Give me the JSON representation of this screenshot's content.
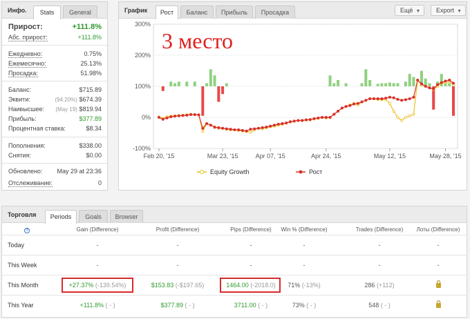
{
  "stats": {
    "title": "Инфо.",
    "tabs": [
      {
        "label": "Stats"
      },
      {
        "label": "General"
      }
    ],
    "gain": {
      "label": "Прирост:",
      "value": "+111.8%"
    },
    "abs_gain": {
      "label": "Абс. прирост:",
      "value": "+111.8%"
    },
    "daily": {
      "label": "Ежедневно:",
      "value": "0.75%"
    },
    "monthly": {
      "label": "Ежемесячно:",
      "value": "25.13%"
    },
    "drawdown": {
      "label": "Просадка:",
      "value": "51.98%"
    },
    "balance": {
      "label": "Баланс:",
      "value": "$715.89"
    },
    "equity": {
      "label": "Эквити:",
      "sub": "(94.20%)",
      "value": "$674.39"
    },
    "highest": {
      "label": "Наивысшее:",
      "sub": "(May 19)",
      "value": "$819.94"
    },
    "profit": {
      "label": "Прибыль:",
      "value": "$377.89"
    },
    "interest": {
      "label": "Процентная ставка:",
      "value": "$8.34"
    },
    "deposits": {
      "label": "Пополнения:",
      "value": "$338.00"
    },
    "withdrawals": {
      "label": "Снятия:",
      "value": "$0.00"
    },
    "updated": {
      "label": "Обновлено:",
      "value": "May 29 at 23:36"
    },
    "tracking": {
      "label": "Отслеживание:",
      "value": "0"
    }
  },
  "chart_panel": {
    "title": "График",
    "tabs": [
      {
        "label": "Рост"
      },
      {
        "label": "Баланс"
      },
      {
        "label": "Прибыль"
      },
      {
        "label": "Просадка"
      }
    ],
    "more_label": "Ещё",
    "export_label": "Export",
    "annotation": "3 место"
  },
  "chart_data": {
    "type": "line",
    "y_ticks": [
      "300%",
      "200%",
      "100%",
      "0%",
      "-100%"
    ],
    "ylim": [
      -100,
      300
    ],
    "x_ticks": [
      "Feb 20, '15",
      "Mar 23, '15",
      "Apr 07, '15",
      "Apr 24, '15",
      "May 12, '15",
      "May 28, '15"
    ],
    "legend": {
      "placement": "bottom",
      "equity_label": "Equity Growth",
      "growth_label": "Рост"
    },
    "colors": {
      "equity": "#e8c020",
      "growth": "#d9302c",
      "bar_pos": "#8fd17f",
      "bar_neg": "#e84848"
    },
    "series": [
      {
        "name": "Equity Growth",
        "values": [
          1,
          -3,
          2,
          4,
          5,
          6,
          7,
          8,
          10,
          9,
          8,
          -45,
          -20,
          -25,
          -30,
          -35,
          -35,
          -38,
          -40,
          -40,
          -42,
          -44,
          -45,
          -48,
          -40,
          -35,
          -37,
          -33,
          -30,
          -28,
          -25,
          -22,
          -18,
          -15,
          -12,
          -10,
          -10,
          -8,
          -8,
          -5,
          -3,
          0,
          -2,
          0,
          10,
          20,
          30,
          35,
          40,
          45,
          40,
          50,
          55,
          60,
          60,
          58,
          57,
          57,
          45,
          20,
          0,
          -10,
          0,
          5,
          10,
          120,
          105,
          100,
          95,
          90,
          100,
          110,
          112,
          115,
          105
        ]
      },
      {
        "name": "Рост",
        "values": [
          0,
          -6,
          -2,
          2,
          4,
          5,
          6,
          7,
          9,
          9,
          8,
          -35,
          -20,
          -25,
          -32,
          -33,
          -35,
          -37,
          -38,
          -40,
          -40,
          -42,
          -44,
          -38,
          -37,
          -35,
          -33,
          -31,
          -28,
          -25,
          -22,
          -20,
          -18,
          -14,
          -12,
          -10,
          -10,
          -8,
          -7,
          -4,
          -2,
          0,
          0,
          0,
          10,
          20,
          30,
          35,
          38,
          43,
          45,
          50,
          55,
          60,
          60,
          60,
          60,
          62,
          65,
          63,
          58,
          55,
          57,
          60,
          65,
          120,
          108,
          100,
          95,
          92,
          105,
          112,
          117,
          120,
          110
        ]
      },
      {
        "name": "bars",
        "values": [
          0,
          -15,
          0,
          15,
          10,
          15,
          0,
          15,
          0,
          15,
          0,
          -95,
          10,
          55,
          35,
          -50,
          -25,
          10,
          0,
          0,
          0,
          0,
          0,
          0,
          0,
          0,
          0,
          0,
          0,
          0,
          0,
          0,
          0,
          0,
          0,
          0,
          0,
          0,
          0,
          0,
          0,
          0,
          0,
          35,
          10,
          20,
          0,
          10,
          0,
          0,
          0,
          10,
          55,
          20,
          0,
          8,
          10,
          10,
          12,
          10,
          10,
          0,
          15,
          40,
          30,
          0,
          50,
          25,
          10,
          -75,
          15,
          40,
          10,
          10,
          -95
        ]
      }
    ]
  },
  "trading": {
    "title": "Торговля",
    "tabs": [
      {
        "label": "Periods"
      },
      {
        "label": "Goals"
      },
      {
        "label": "Browser"
      }
    ],
    "help_icon": "?",
    "columns": [
      "Gain (Difference)",
      "Profit (Difference)",
      "Pips (Difference)",
      "Win % (Difference)",
      "Trades (Difference)",
      "Лоты (Difference)"
    ],
    "rows": [
      {
        "label": "Today",
        "gain": "-",
        "gain_d": "",
        "profit": "-",
        "profit_d": "",
        "pips": "-",
        "pips_d": "",
        "win": "-",
        "win_d": "",
        "trades": "-",
        "trades_d": "",
        "lots": "-"
      },
      {
        "label": "This Week",
        "gain": "-",
        "gain_d": "",
        "profit": "-",
        "profit_d": "",
        "pips": "-",
        "pips_d": "",
        "win": "-",
        "win_d": "",
        "trades": "-",
        "trades_d": "",
        "lots": "-"
      },
      {
        "label": "This Month",
        "gain": "+27.37%",
        "gain_d": "(-139.54%)",
        "profit": "$153.83",
        "profit_d": "(-$197.65)",
        "pips": "1464.00",
        "pips_d": "(-2018.0)",
        "win": "71%",
        "win_d": "(-13%)",
        "trades": "286",
        "trades_d": "(+112)",
        "lots": ""
      },
      {
        "label": "This Year",
        "gain": "+111.8%",
        "gain_d": "( - )",
        "profit": "$377.89",
        "profit_d": "( - )",
        "pips": "3711.00",
        "pips_d": "( - )",
        "win": "73%",
        "win_d": "( - )",
        "trades": "548",
        "trades_d": "( - )",
        "lots": ""
      }
    ]
  }
}
